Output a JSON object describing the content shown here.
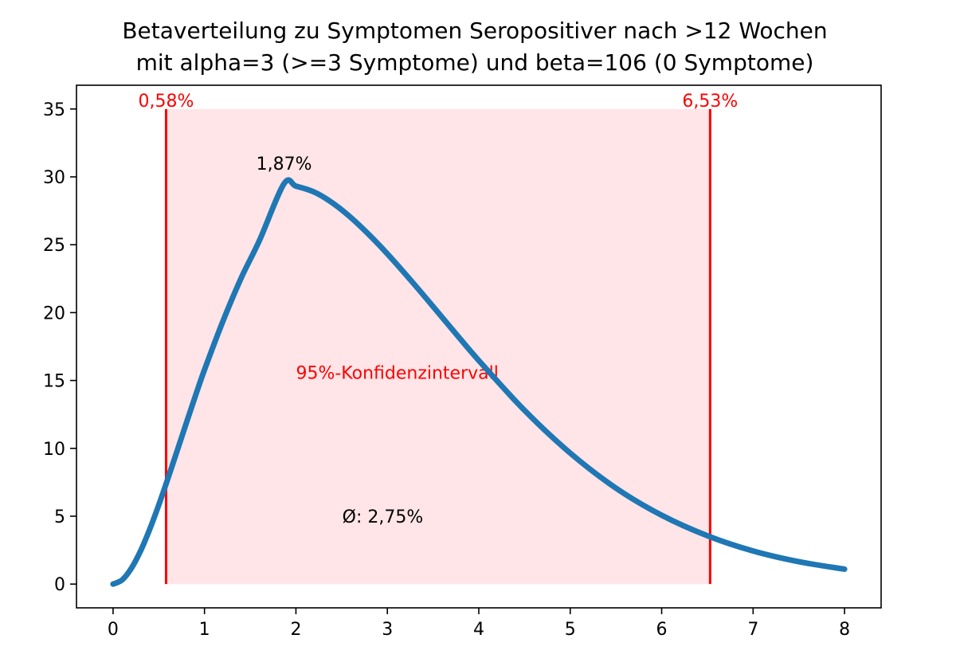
{
  "chart_data": {
    "type": "line",
    "title_line1": "Betaverteilung zu Symptomen Seropositiver nach >12 Wochen",
    "title_line2": "mit alpha=3 (>=3 Symptome) und beta=106 (0 Symptome)",
    "xlabel": "",
    "ylabel": "",
    "xlim": [
      -0.4,
      8.4
    ],
    "ylim": [
      -1.75,
      36.75
    ],
    "x_ticks": [
      0,
      1,
      2,
      3,
      4,
      5,
      6,
      7,
      8
    ],
    "x_tick_labels": [
      "0",
      "1",
      "2",
      "3",
      "4",
      "5",
      "6",
      "7",
      "8"
    ],
    "y_ticks": [
      0,
      5,
      10,
      15,
      20,
      25,
      30,
      35
    ],
    "y_tick_labels": [
      "0",
      "5",
      "10",
      "15",
      "20",
      "25",
      "30",
      "35"
    ],
    "grid": false,
    "series": [
      {
        "color": "#1f77b4",
        "x": [
          0,
          0.1,
          0.2,
          0.3,
          0.4,
          0.5,
          0.6,
          0.7,
          0.8,
          0.9,
          1.0,
          1.2,
          1.4,
          1.6,
          1.87,
          2.0,
          2.2,
          2.4,
          2.6,
          2.8,
          3.0,
          3.25,
          3.5,
          3.75,
          4.0,
          4.5,
          5.0,
          5.5,
          6.0,
          6.5,
          7.0,
          7.5,
          8.0
        ],
        "y": [
          0,
          0.31,
          1.16,
          2.43,
          4.02,
          5.83,
          7.78,
          9.8,
          11.84,
          13.85,
          15.79,
          19.34,
          22.53,
          25.3,
          29.5,
          29.32,
          28.88,
          28.08,
          27.01,
          25.74,
          24.33,
          22.43,
          20.45,
          18.44,
          16.47,
          12.8,
          9.65,
          7.07,
          5.07,
          3.56,
          2.44,
          1.65,
          1.1
        ]
      }
    ],
    "confidence_interval": {
      "lower": 0.58,
      "upper": 6.53,
      "top": 35,
      "line_color": "#ff0000",
      "fill_color": "#ffe5e7",
      "label": "95%-Konfidenzintervall",
      "label_x": 2.0,
      "label_y": 15,
      "lower_label": "0,58%",
      "upper_label": "6,53%"
    },
    "annotations": [
      {
        "text": "1,87%",
        "x": 1.87,
        "y": 31,
        "color": "#000000"
      },
      {
        "text": "Ø: 2,75%",
        "x": 2.95,
        "y": 5,
        "color": "#000000"
      }
    ]
  }
}
